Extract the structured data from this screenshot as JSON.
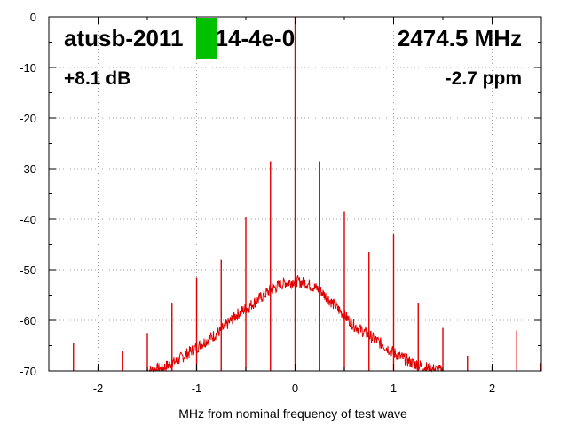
{
  "header": {
    "device_id": "atusb-2011   214-4e-0",
    "frequency": "2474.5 MHz",
    "gain": "+8.1 dB",
    "ppm": "-2.7 ppm"
  },
  "colors": {
    "trace": "#e00000",
    "marker": "#00c000",
    "grid": "#a0a0a0",
    "axis": "#000000"
  },
  "chart_data": {
    "type": "line",
    "title": "",
    "xlabel": "MHz from nominal frequency of test wave",
    "ylabel": "",
    "xlim": [
      -2.5,
      2.5
    ],
    "ylim": [
      -70,
      0
    ],
    "x_ticks": [
      -2,
      -1,
      0,
      1,
      2
    ],
    "x_tick_labels": [
      "-2",
      "-1",
      "0",
      "1",
      "2"
    ],
    "y_ticks": [
      0,
      -10,
      -20,
      -30,
      -40,
      -50,
      -60,
      -70
    ],
    "y_tick_labels": [
      "0",
      "-10",
      "-20",
      "-30",
      "-40",
      "-50",
      "-60",
      "-70"
    ],
    "grid": true,
    "grid_style": "dotted",
    "series": [
      {
        "role": "noise-floor",
        "x": [
          -1.5,
          -1.35,
          -1.2,
          -1.05,
          -0.9,
          -0.75,
          -0.6,
          -0.45,
          -0.35,
          -0.25,
          -0.15,
          -0.1,
          -0.05,
          0.0,
          0.05,
          0.1,
          0.15,
          0.25,
          0.35,
          0.45,
          0.6,
          0.75,
          0.9,
          1.05,
          1.2,
          1.35,
          1.5
        ],
        "y": [
          -70,
          -69.5,
          -68,
          -66,
          -64,
          -62,
          -59,
          -57,
          -55.5,
          -54,
          -53,
          -52.5,
          -52.5,
          -52,
          -52.5,
          -52.5,
          -53,
          -54,
          -56,
          -58,
          -61,
          -63,
          -65,
          -67,
          -68.5,
          -69.5,
          -70
        ]
      },
      {
        "role": "spurs",
        "x": [
          -2.25,
          -2.0,
          -1.75,
          -1.5,
          -1.25,
          -1.0,
          -0.75,
          -0.5,
          -0.25,
          0.0,
          0.25,
          0.5,
          0.75,
          1.0,
          1.25,
          1.5,
          1.75,
          2.0,
          2.25,
          2.5
        ],
        "y": [
          -64.5,
          -69,
          -66,
          -62.5,
          -56.5,
          -51.5,
          -48,
          -39.5,
          -28.5,
          0,
          -28.5,
          -38.5,
          -46.5,
          -43,
          -56.5,
          -61.5,
          -67,
          -69,
          -62,
          -68.5
        ]
      }
    ]
  }
}
